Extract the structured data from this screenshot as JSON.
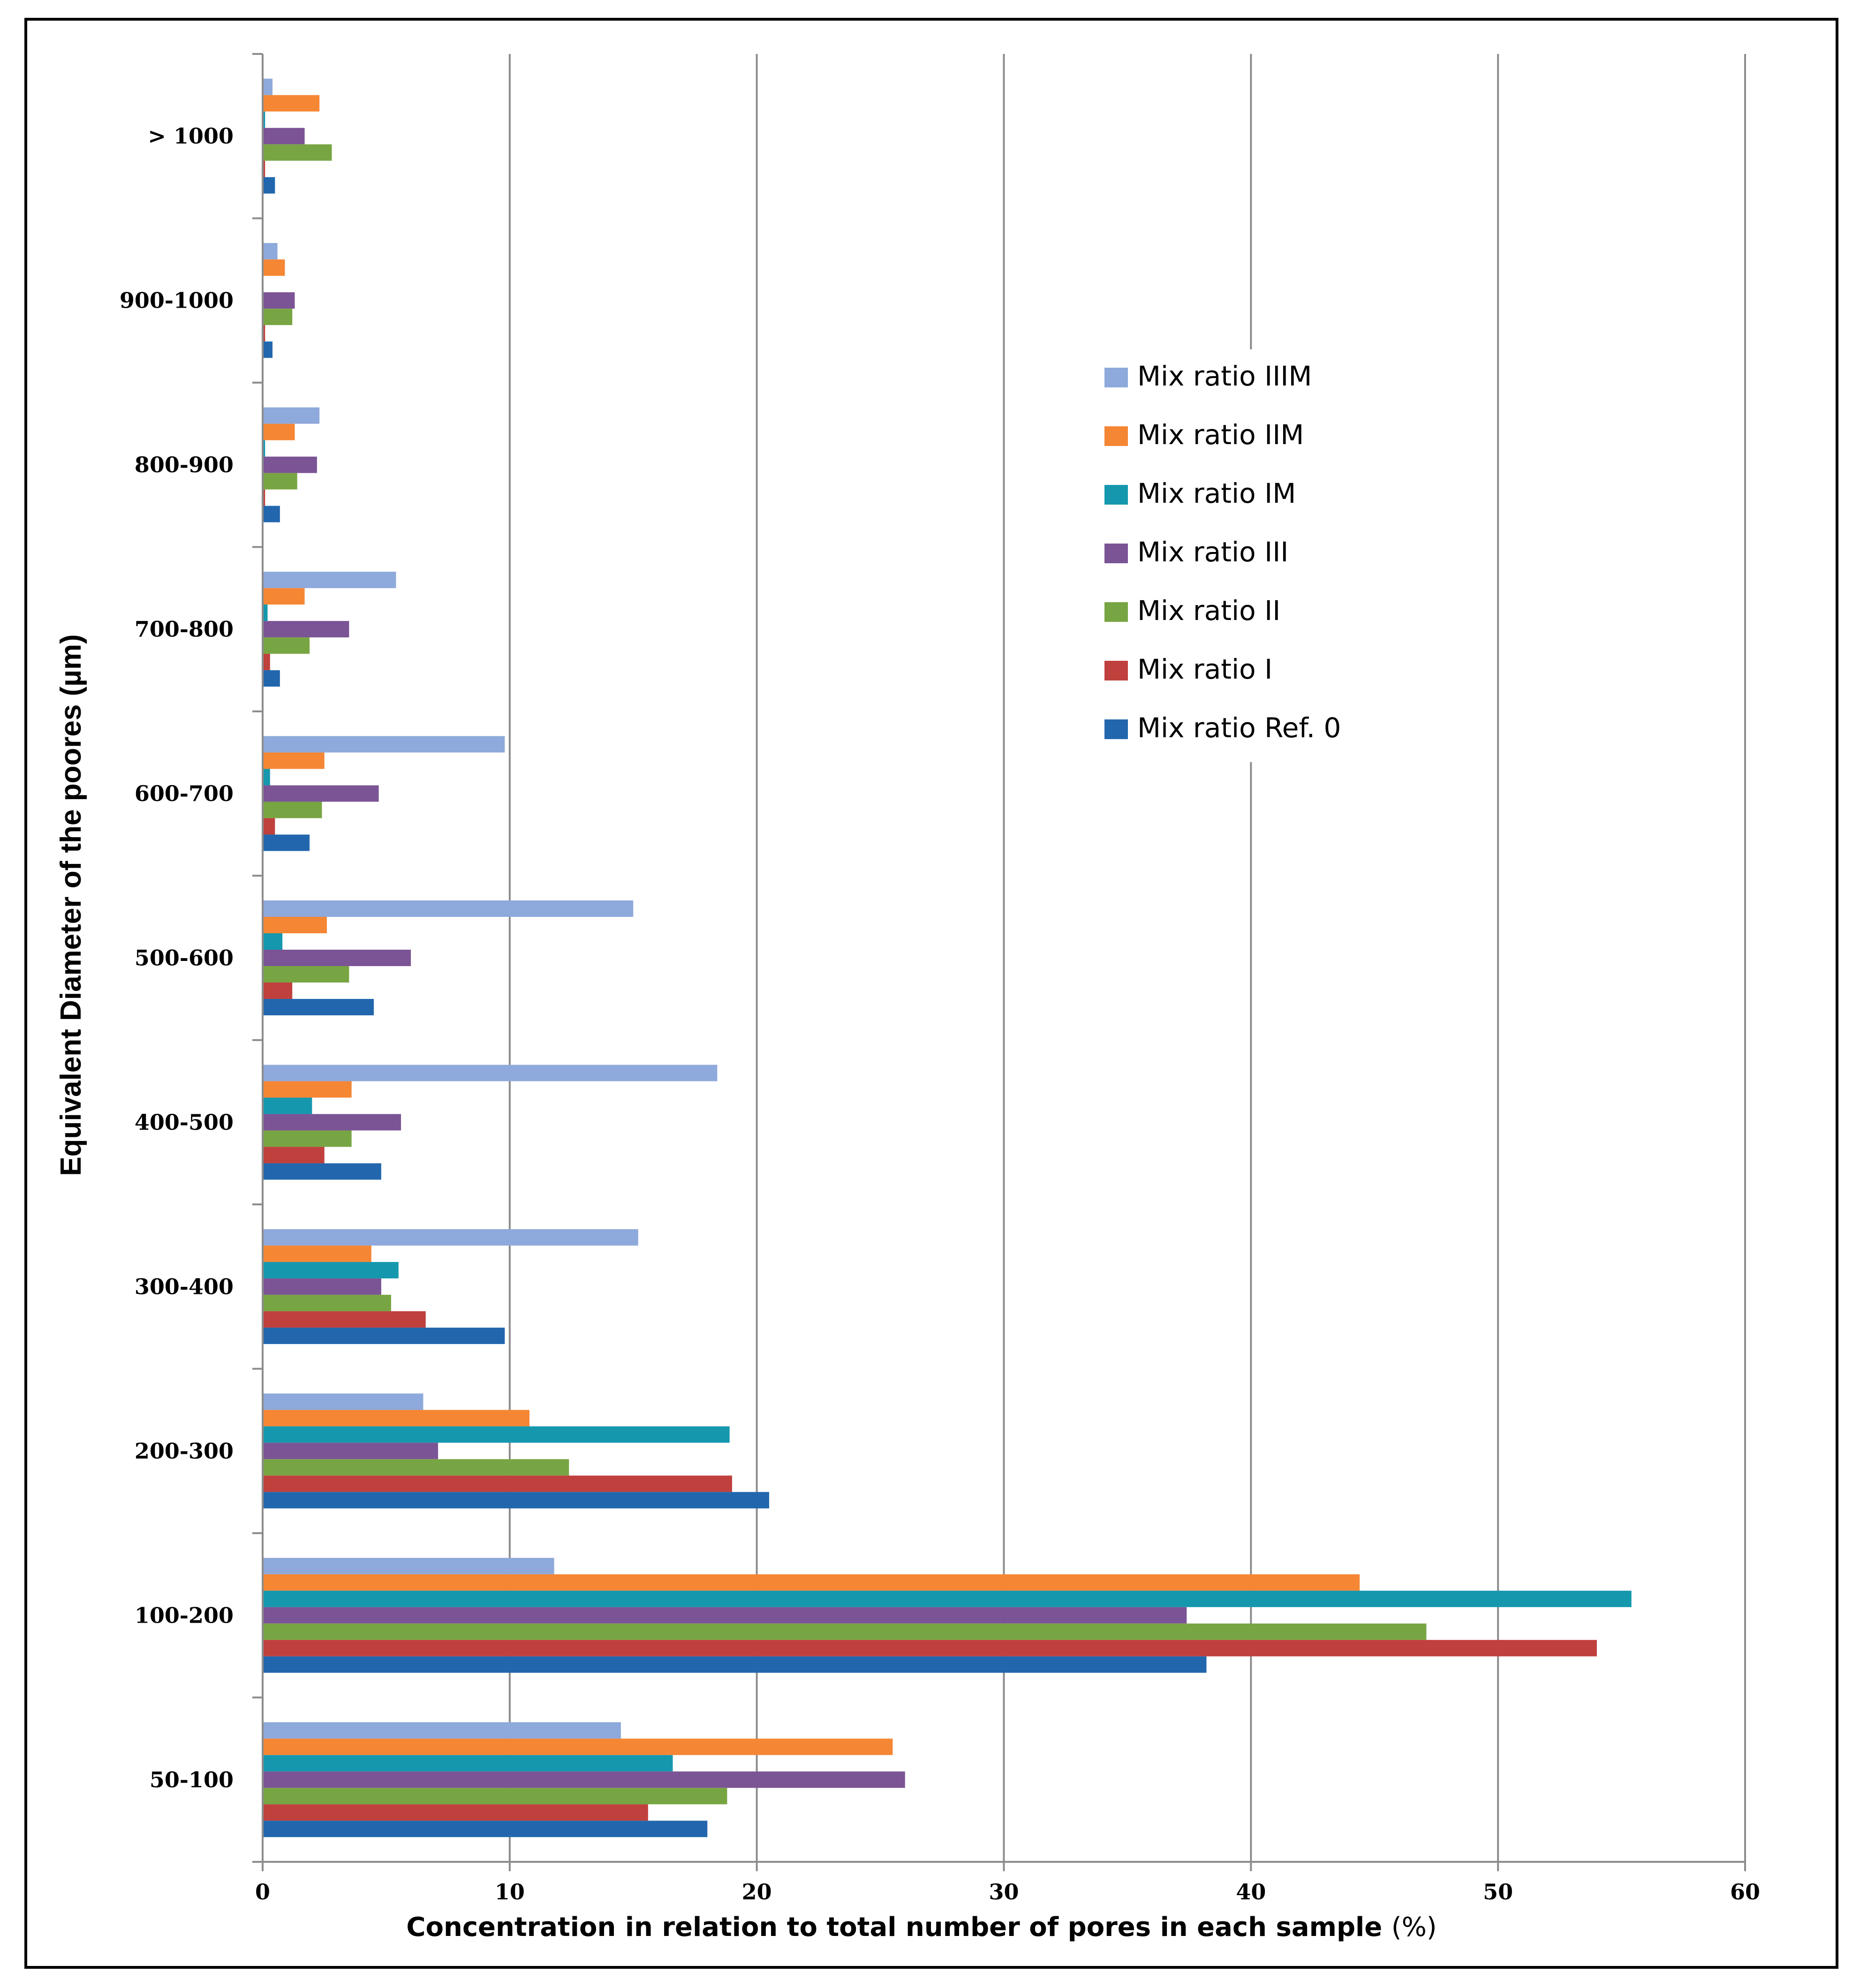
{
  "chart_data": {
    "type": "bar",
    "orientation": "horizontal",
    "title": "",
    "xlabel": "Concentration in relation to total number of pores in each sample",
    "xlabel_unit": "(%)",
    "ylabel": "Equivalent Diameter of the poores (µm)",
    "xlim": [
      0,
      60
    ],
    "xticks": [
      "0",
      "10",
      "20",
      "30",
      "40",
      "50",
      "60"
    ],
    "grid": "vertical",
    "legend_position": "right",
    "categories": [
      "50-100",
      "100-200",
      "200-300",
      "300-400",
      "400-500",
      "500-600",
      "600-700",
      "700-800",
      "800-900",
      "900-1000",
      "> 1000"
    ],
    "series": [
      {
        "name": "Mix ratio IIIM",
        "color": "#8EA9DB",
        "values": [
          14.5,
          11.8,
          6.5,
          15.2,
          18.4,
          15.0,
          9.8,
          5.4,
          2.3,
          0.6,
          0.4
        ]
      },
      {
        "name": "Mix ratio IIM",
        "color": "#F58634",
        "values": [
          25.5,
          44.4,
          10.8,
          4.4,
          3.6,
          2.6,
          2.5,
          1.7,
          1.3,
          0.9,
          2.3
        ]
      },
      {
        "name": "Mix ratio IM",
        "color": "#1598AE",
        "values": [
          16.6,
          55.4,
          18.9,
          5.5,
          2.0,
          0.8,
          0.3,
          0.2,
          0.1,
          0.0,
          0.1
        ]
      },
      {
        "name": "Mix ratio III",
        "color": "#7B5495",
        "values": [
          26.0,
          37.4,
          7.1,
          4.8,
          5.6,
          6.0,
          4.7,
          3.5,
          2.2,
          1.3,
          1.7
        ]
      },
      {
        "name": "Mix ratio II",
        "color": "#78A543",
        "values": [
          18.8,
          47.1,
          12.4,
          5.2,
          3.6,
          3.5,
          2.4,
          1.9,
          1.4,
          1.2,
          2.8
        ]
      },
      {
        "name": "Mix ratio I",
        "color": "#C0403E",
        "values": [
          15.6,
          54.0,
          19.0,
          6.6,
          2.5,
          1.2,
          0.5,
          0.3,
          0.1,
          0.1,
          0.1
        ]
      },
      {
        "name": "Mix ratio Ref. 0",
        "color": "#2267AE",
        "values": [
          18.0,
          38.2,
          20.5,
          9.8,
          4.8,
          4.5,
          1.9,
          0.7,
          0.7,
          0.4,
          0.5
        ]
      }
    ]
  }
}
